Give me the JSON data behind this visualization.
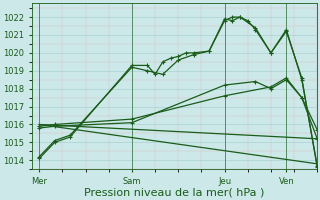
{
  "xlabel": "Pression niveau de la mer( hPa )",
  "bg_color": "#cce8e8",
  "grid_major_color": "#aad0d0",
  "grid_minor_color": "#ddc0c0",
  "line_color": "#1a5c1a",
  "ylim": [
    1013.5,
    1022.8
  ],
  "yticks": [
    1014,
    1015,
    1016,
    1017,
    1018,
    1019,
    1020,
    1021,
    1022
  ],
  "xtick_labels": [
    "Mer",
    "Sam",
    "Jeu",
    "Ven"
  ],
  "xtick_positions": [
    0,
    24,
    48,
    64
  ],
  "xlim": [
    -2,
    72
  ],
  "vlines": [
    0,
    24,
    48,
    64
  ],
  "lines": [
    {
      "x": [
        0,
        4,
        8,
        24,
        28,
        30,
        32,
        34,
        36,
        38,
        40,
        44,
        48,
        50,
        52,
        54,
        56,
        60,
        64,
        68,
        72
      ],
      "y": [
        1014.1,
        1015.0,
        1015.3,
        1019.3,
        1019.3,
        1018.8,
        1019.5,
        1019.7,
        1019.8,
        1020.0,
        1020.0,
        1020.1,
        1021.9,
        1021.8,
        1022.0,
        1021.8,
        1021.3,
        1020.0,
        1021.2,
        1018.6,
        1013.6
      ],
      "marker": "+",
      "lw": 0.9
    },
    {
      "x": [
        0,
        4,
        8,
        24,
        28,
        32,
        36,
        40,
        44,
        48,
        50,
        52,
        56,
        60,
        64,
        68,
        72
      ],
      "y": [
        1014.2,
        1015.1,
        1015.4,
        1019.2,
        1019.0,
        1018.8,
        1019.6,
        1019.9,
        1020.1,
        1021.8,
        1022.0,
        1022.0,
        1021.4,
        1020.0,
        1021.3,
        1018.5,
        1013.7
      ],
      "marker": "+",
      "lw": 0.9
    },
    {
      "x": [
        0,
        4,
        24,
        48,
        56,
        60,
        64,
        68,
        72
      ],
      "y": [
        1015.8,
        1015.9,
        1016.1,
        1018.2,
        1018.4,
        1018.0,
        1018.5,
        1017.5,
        1015.2
      ],
      "marker": "+",
      "lw": 0.9
    },
    {
      "x": [
        0,
        4,
        24,
        48,
        60,
        64,
        68,
        72
      ],
      "y": [
        1015.9,
        1016.0,
        1016.3,
        1017.6,
        1018.1,
        1018.6,
        1017.5,
        1015.7
      ],
      "marker": "+",
      "lw": 0.9
    },
    {
      "x": [
        0,
        72
      ],
      "y": [
        1016.0,
        1015.2
      ],
      "marker": null,
      "lw": 0.9
    },
    {
      "x": [
        0,
        72
      ],
      "y": [
        1016.0,
        1013.8
      ],
      "marker": null,
      "lw": 0.9
    }
  ],
  "tick_fontsize": 6,
  "xlabel_fontsize": 8
}
